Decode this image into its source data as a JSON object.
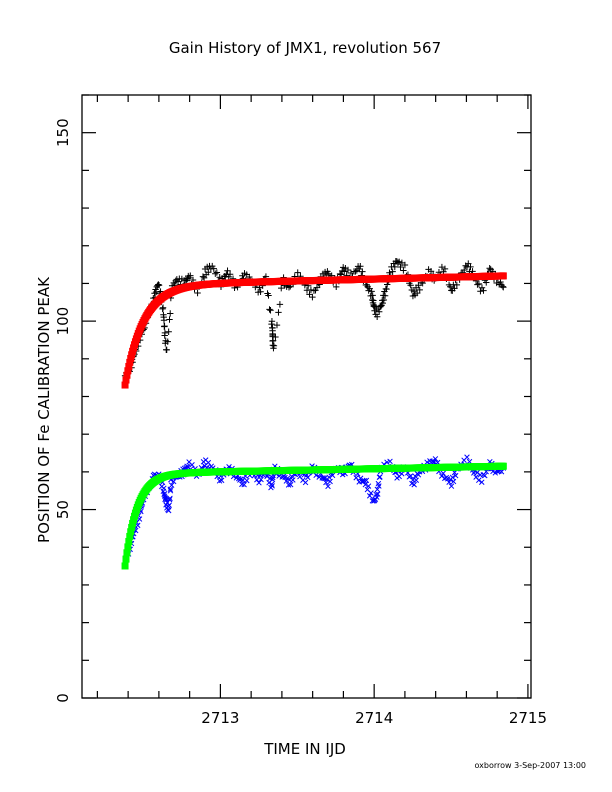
{
  "chart_data": {
    "type": "scatter",
    "title": "Gain History of JMX1, revolution 567",
    "xlabel": "TIME IN IJD",
    "ylabel": "POSITION OF Fe CALIBRATION PEAK",
    "xlim": [
      2712.1,
      2715.02
    ],
    "ylim": [
      0,
      160
    ],
    "xticks": [
      2713,
      2714,
      2715
    ],
    "yticks": [
      0,
      50,
      100,
      150
    ],
    "grid": false,
    "x_start": 2712.38,
    "x_end": 2714.84,
    "series": [
      {
        "marker": "plus",
        "color": "#000000",
        "points": [
          [
            2712.38,
            85.5
          ],
          [
            2712.42,
            88.5
          ],
          [
            2712.45,
            92
          ],
          [
            2712.48,
            96.5
          ],
          [
            2712.51,
            99
          ],
          [
            2712.54,
            103
          ],
          [
            2712.57,
            106.5
          ],
          [
            2712.6,
            110
          ],
          [
            2712.62,
            104
          ],
          [
            2712.64,
            98
          ],
          [
            2712.65,
            92
          ],
          [
            2712.68,
            108
          ],
          [
            2712.72,
            111
          ],
          [
            2712.76,
            110
          ],
          [
            2712.8,
            112
          ],
          [
            2712.85,
            108
          ],
          [
            2712.9,
            113
          ],
          [
            2712.95,
            114.5
          ],
          [
            2713.0,
            110
          ],
          [
            2713.05,
            113
          ],
          [
            2713.1,
            109
          ],
          [
            2713.15,
            112
          ],
          [
            2713.2,
            111
          ],
          [
            2713.25,
            108
          ],
          [
            2713.3,
            112
          ],
          [
            2713.33,
            100
          ],
          [
            2713.34,
            96
          ],
          [
            2713.35,
            93
          ],
          [
            2713.4,
            111
          ],
          [
            2713.45,
            109
          ],
          [
            2713.5,
            112
          ],
          [
            2713.55,
            110
          ],
          [
            2713.6,
            107
          ],
          [
            2713.65,
            111
          ],
          [
            2713.7,
            113
          ],
          [
            2713.75,
            110
          ],
          [
            2713.8,
            114
          ],
          [
            2713.85,
            112
          ],
          [
            2713.9,
            114.5
          ],
          [
            2713.95,
            110
          ],
          [
            2713.98,
            107
          ],
          [
            2714.0,
            104
          ],
          [
            2714.02,
            102
          ],
          [
            2714.05,
            105
          ],
          [
            2714.08,
            108
          ],
          [
            2714.1,
            113
          ],
          [
            2714.15,
            116
          ],
          [
            2714.2,
            114
          ],
          [
            2714.25,
            107
          ],
          [
            2714.3,
            109
          ],
          [
            2714.35,
            113
          ],
          [
            2714.4,
            111
          ],
          [
            2714.45,
            114
          ],
          [
            2714.5,
            108
          ],
          [
            2714.55,
            111
          ],
          [
            2714.6,
            115
          ],
          [
            2714.65,
            112
          ],
          [
            2714.7,
            108
          ],
          [
            2714.75,
            114
          ],
          [
            2714.8,
            111
          ],
          [
            2714.84,
            109
          ]
        ]
      },
      {
        "marker": "cross",
        "color": "#0000ff",
        "points": [
          [
            2712.38,
            37
          ],
          [
            2712.42,
            41
          ],
          [
            2712.45,
            45
          ],
          [
            2712.48,
            50
          ],
          [
            2712.51,
            54
          ],
          [
            2712.54,
            56.5
          ],
          [
            2712.57,
            58.5
          ],
          [
            2712.6,
            59
          ],
          [
            2712.63,
            55
          ],
          [
            2712.65,
            52
          ],
          [
            2712.66,
            50
          ],
          [
            2712.68,
            57
          ],
          [
            2712.72,
            59
          ],
          [
            2712.76,
            60
          ],
          [
            2712.8,
            62
          ],
          [
            2712.85,
            59
          ],
          [
            2712.9,
            62.5
          ],
          [
            2712.95,
            61
          ],
          [
            2713.0,
            58
          ],
          [
            2713.05,
            61
          ],
          [
            2713.1,
            59
          ],
          [
            2713.15,
            57
          ],
          [
            2713.2,
            60
          ],
          [
            2713.25,
            58
          ],
          [
            2713.3,
            60
          ],
          [
            2713.33,
            56
          ],
          [
            2713.35,
            61
          ],
          [
            2713.4,
            59
          ],
          [
            2713.45,
            57
          ],
          [
            2713.5,
            60
          ],
          [
            2713.55,
            58
          ],
          [
            2713.6,
            61
          ],
          [
            2713.65,
            59
          ],
          [
            2713.7,
            57
          ],
          [
            2713.75,
            61
          ],
          [
            2713.8,
            60
          ],
          [
            2713.85,
            62
          ],
          [
            2713.9,
            58
          ],
          [
            2713.95,
            57
          ],
          [
            2714.0,
            52
          ],
          [
            2714.02,
            55
          ],
          [
            2714.05,
            61
          ],
          [
            2714.1,
            62
          ],
          [
            2714.15,
            59
          ],
          [
            2714.2,
            61
          ],
          [
            2714.25,
            57
          ],
          [
            2714.3,
            60
          ],
          [
            2714.35,
            62
          ],
          [
            2714.4,
            63
          ],
          [
            2714.45,
            59
          ],
          [
            2714.5,
            57
          ],
          [
            2714.55,
            61
          ],
          [
            2714.6,
            63
          ],
          [
            2714.65,
            60
          ],
          [
            2714.7,
            58
          ],
          [
            2714.75,
            62
          ],
          [
            2714.8,
            60
          ],
          [
            2714.84,
            61
          ]
        ]
      },
      {
        "marker": "fit-line",
        "color": "#ff0000",
        "asymptote": 112,
        "start_value": 85.5,
        "tau_days": 0.12,
        "drift_per_day": 1.0
      },
      {
        "marker": "fit-line",
        "color": "#00ff00",
        "asymptote": 61.5,
        "start_value": 37,
        "tau_days": 0.08,
        "drift_per_day": 0.8
      }
    ]
  },
  "footer": {
    "credit": "oxborrow  3-Sep-2007 13:00"
  }
}
